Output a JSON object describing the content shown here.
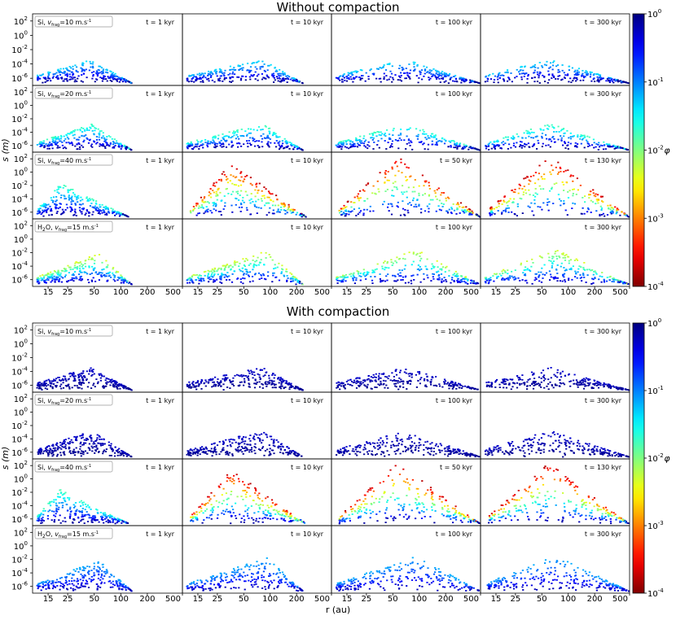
{
  "chart_data": [
    {
      "type": "scatter",
      "title": "Without compaction",
      "xlabel": "",
      "ylabel": "s (m)",
      "x_scale": "log",
      "y_scale": "log",
      "xlim": [
        10,
        500
      ],
      "ylim": [
        1e-07,
        1000
      ],
      "x_ticks": [
        "15",
        "25",
        "50",
        "100",
        "200",
        "500"
      ],
      "y_ticks": [
        "10^2",
        "10^0",
        "10^-2",
        "10^-4",
        "10^-6"
      ],
      "rows": [
        {
          "label": "Si, v_frag=10 m.s^-1",
          "times": [
            "t = 1 kyr",
            "t = 10 kyr",
            "t = 100 kyr",
            "t = 300 kyr"
          ]
        },
        {
          "label": "Si, v_frag=20 m.s^-1",
          "times": [
            "t = 1 kyr",
            "t = 10 kyr",
            "t = 100 kyr",
            "t = 300 kyr"
          ]
        },
        {
          "label": "Si, v_frag=40 m.s^-1",
          "times": [
            "t = 1 kyr",
            "t = 10 kyr",
            "t = 50 kyr",
            "t = 130 kyr"
          ]
        },
        {
          "label": "H2O, v_frag=15 m.s^-1",
          "times": [
            "t = 1 kyr",
            "t = 10 kyr",
            "t = 100 kyr",
            "t = 300 kyr"
          ]
        }
      ],
      "colorbar": {
        "label": "φ",
        "scale": "log",
        "range": [
          0.0001,
          1
        ],
        "ticks": [
          "10^0",
          "10^-1",
          "10^-2",
          "10^-3",
          "10^-4"
        ],
        "colormap": "jet_r"
      }
    },
    {
      "type": "scatter",
      "title": "With compaction",
      "xlabel": "r (au)",
      "ylabel": "s (m)",
      "x_scale": "log",
      "y_scale": "log",
      "xlim": [
        10,
        500
      ],
      "ylim": [
        1e-07,
        1000
      ],
      "x_ticks": [
        "15",
        "25",
        "50",
        "100",
        "200",
        "500"
      ],
      "y_ticks": [
        "10^2",
        "10^0",
        "10^-2",
        "10^-4",
        "10^-6"
      ],
      "rows": [
        {
          "label": "Si, v_frag=10 m.s^-1",
          "times": [
            "t = 1 kyr",
            "t = 10 kyr",
            "t = 100 kyr",
            "t = 300 kyr"
          ]
        },
        {
          "label": "Si, v_frag=20 m.s^-1",
          "times": [
            "t = 1 kyr",
            "t = 10 kyr",
            "t = 100 kyr",
            "t = 300 kyr"
          ]
        },
        {
          "label": "Si, v_frag=40 m.s^-1",
          "times": [
            "t = 1 kyr",
            "t = 10 kyr",
            "t = 50 kyr",
            "t = 130 kyr"
          ]
        },
        {
          "label": "H2O, v_frag=15 m.s^-1",
          "times": [
            "t = 1 kyr",
            "t = 10 kyr",
            "t = 100 kyr",
            "t = 300 kyr"
          ]
        }
      ],
      "colorbar": {
        "label": "φ",
        "scale": "log",
        "range": [
          0.0001,
          1
        ],
        "ticks": [
          "10^0",
          "10^-1",
          "10^-2",
          "10^-3",
          "10^-4"
        ],
        "colormap": "jet_r"
      }
    }
  ],
  "colormap_stops": [
    "#800000",
    "#ff0000",
    "#ff8000",
    "#ffff00",
    "#80ff80",
    "#00ffff",
    "#0080ff",
    "#0000ff",
    "#000080"
  ],
  "row_labels": [
    {
      "species": "Si",
      "value": "=10 m.s",
      "sup": "-1"
    },
    {
      "species": "Si",
      "value": "=20 m.s",
      "sup": "-1"
    },
    {
      "species": "Si",
      "value": "=40 m.s",
      "sup": "-1"
    },
    {
      "species": "H",
      "sub": "2",
      "species_tail": "O",
      "value": "=15 m.s",
      "sup": "-1"
    }
  ],
  "vfrag_symbol": "v",
  "vfrag_sub": "frag"
}
